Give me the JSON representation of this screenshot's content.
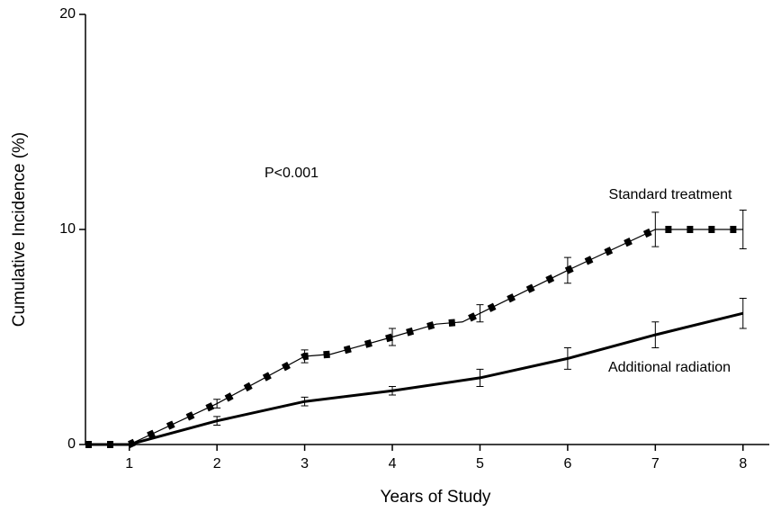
{
  "chart_data": {
    "type": "line",
    "annotation": "P<0.001",
    "xlabel": "Years of Study",
    "ylabel": "Cumulative Incidence (%)",
    "xlim": [
      0.5,
      8.3
    ],
    "xticks": [
      1,
      2,
      3,
      4,
      5,
      6,
      7,
      8
    ],
    "ylim": [
      0,
      20
    ],
    "yticks": [
      0,
      10,
      20
    ],
    "grid": false,
    "series": [
      {
        "name": "Standard treatment",
        "color": "#000000",
        "markers": true,
        "x": [
          0.5,
          1,
          2,
          3,
          3.3,
          4,
          4.5,
          4.8,
          5,
          6,
          7,
          8
        ],
        "values": [
          0,
          0,
          1.9,
          4.1,
          4.2,
          5.0,
          5.6,
          5.7,
          6.1,
          8.1,
          10,
          10
        ],
        "errors": [
          null,
          null,
          0.2,
          0.3,
          null,
          0.4,
          null,
          null,
          0.4,
          0.6,
          0.8,
          0.9
        ]
      },
      {
        "name": "Additional radiation",
        "color": "#000000",
        "markers": false,
        "x": [
          0.5,
          1,
          2,
          3,
          4,
          5,
          6,
          7,
          8
        ],
        "values": [
          0,
          0,
          1.1,
          2.0,
          2.5,
          3.1,
          4.0,
          5.1,
          6.1
        ],
        "errors": [
          null,
          null,
          0.2,
          0.2,
          0.2,
          0.4,
          0.5,
          0.6,
          0.7
        ]
      }
    ]
  }
}
